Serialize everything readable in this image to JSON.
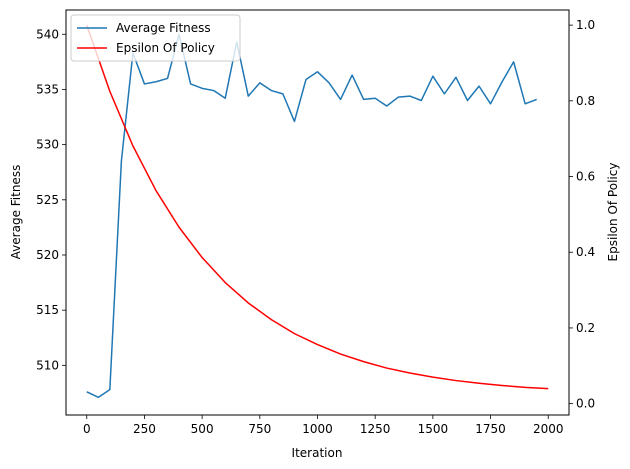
{
  "chart_data": {
    "type": "line",
    "xlabel": "Iteration",
    "ylabel_left": "Average Fitness",
    "ylabel_right": "Epsilon Of Policy",
    "xlim": [
      -90,
      2090
    ],
    "ylim_left": [
      505.5,
      542.2
    ],
    "ylim_right": [
      -0.03,
      1.04
    ],
    "x_ticks": [
      0,
      250,
      500,
      750,
      1000,
      1250,
      1500,
      1750,
      2000
    ],
    "x_tick_labels": [
      "0",
      "250",
      "500",
      "750",
      "1000",
      "1250",
      "1500",
      "1750",
      "2000"
    ],
    "y_left_ticks": [
      510,
      515,
      520,
      525,
      530,
      535,
      540
    ],
    "y_left_tick_labels": [
      "510",
      "515",
      "520",
      "525",
      "530",
      "535",
      "540"
    ],
    "y_right_ticks": [
      0.0,
      0.2,
      0.4,
      0.6,
      0.8,
      1.0
    ],
    "y_right_tick_labels": [
      "0.0",
      "0.2",
      "0.4",
      "0.6",
      "0.8",
      "1.0"
    ],
    "grid": false,
    "legend_position": "upper-left",
    "series": [
      {
        "name": "Average Fitness",
        "axis": "left",
        "color": "#1f77b4",
        "x": [
          0,
          50,
          100,
          150,
          200,
          250,
          300,
          350,
          400,
          450,
          500,
          550,
          600,
          650,
          700,
          750,
          800,
          850,
          900,
          950,
          1000,
          1050,
          1100,
          1150,
          1200,
          1250,
          1300,
          1350,
          1400,
          1450,
          1500,
          1550,
          1600,
          1650,
          1700,
          1750,
          1800,
          1850,
          1900,
          1950
        ],
        "y": [
          507.6,
          507.1,
          507.8,
          528.5,
          538.3,
          535.5,
          535.7,
          536.0,
          540.0,
          535.5,
          535.1,
          534.9,
          534.2,
          539.3,
          534.4,
          535.6,
          534.9,
          534.6,
          532.1,
          535.9,
          536.6,
          535.6,
          534.1,
          536.3,
          534.1,
          534.2,
          533.5,
          534.3,
          534.4,
          534.0,
          536.2,
          534.6,
          536.1,
          534.0,
          535.3,
          533.7,
          535.7,
          537.5,
          533.7,
          534.1
        ]
      },
      {
        "name": "Epsilon Of Policy",
        "axis": "right",
        "color": "#ff0000",
        "x": [
          0,
          100,
          200,
          300,
          400,
          500,
          600,
          700,
          800,
          900,
          1000,
          1100,
          1200,
          1300,
          1400,
          1500,
          1600,
          1700,
          1800,
          1900,
          2000
        ],
        "y": [
          1.0,
          0.825,
          0.681,
          0.563,
          0.466,
          0.386,
          0.32,
          0.266,
          0.222,
          0.185,
          0.156,
          0.131,
          0.111,
          0.094,
          0.081,
          0.07,
          0.061,
          0.054,
          0.048,
          0.043,
          0.0397
        ]
      }
    ]
  }
}
